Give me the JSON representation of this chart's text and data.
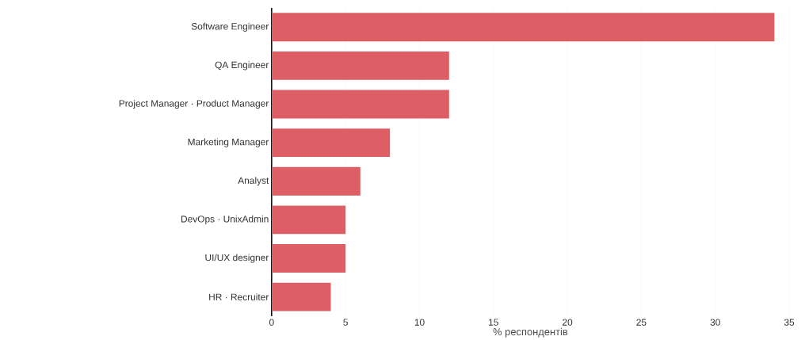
{
  "chart_data": {
    "type": "bar",
    "orientation": "horizontal",
    "xlabel": "% респондентів",
    "categories": [
      "Software Engineer",
      "QA Engineer",
      "Project Manager · Product Manager",
      "Marketing Manager",
      "Analyst",
      "DevOps · UnixAdmin",
      "UI/UX designer",
      "HR · Recruiter"
    ],
    "values": [
      34,
      12,
      12,
      8,
      6,
      5,
      5,
      4
    ],
    "color": "#dd5e64",
    "xlim": [
      0,
      35
    ],
    "xticks": [
      0,
      5,
      10,
      15,
      20,
      25,
      30,
      35
    ],
    "grid": "x"
  }
}
